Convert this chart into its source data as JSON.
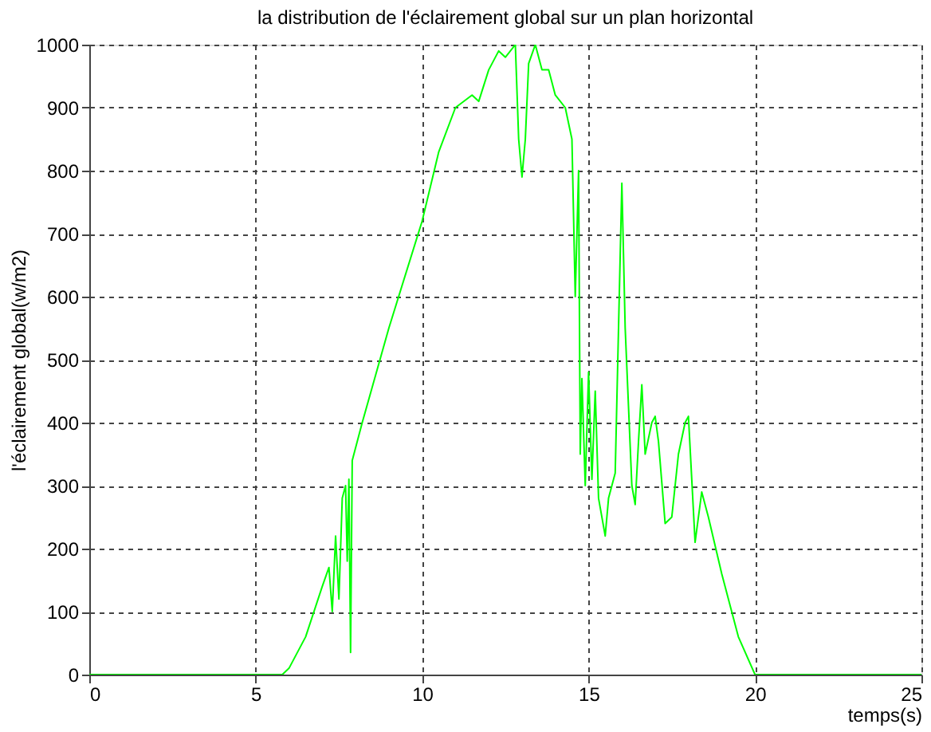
{
  "chart_data": {
    "type": "line",
    "title": "la distribution de l'éclairement global sur un plan horizontal",
    "xlabel": "temps(s)",
    "ylabel": "l'éclairement global(w/m2)",
    "x": [
      0,
      5.8,
      6.0,
      6.5,
      7.0,
      7.2,
      7.3,
      7.4,
      7.5,
      7.6,
      7.7,
      7.75,
      7.8,
      7.85,
      7.9,
      8.2,
      9,
      10,
      10.5,
      11,
      11.5,
      11.7,
      12,
      12.3,
      12.5,
      12.8,
      12.9,
      13.0,
      13.1,
      13.2,
      13.4,
      13.6,
      13.8,
      14.0,
      14.3,
      14.5,
      14.6,
      14.7,
      14.75,
      14.8,
      14.9,
      15.0,
      15.1,
      15.2,
      15.3,
      15.5,
      15.6,
      15.8,
      15.9,
      16.0,
      16.1,
      16.3,
      16.4,
      16.5,
      16.6,
      16.7,
      16.9,
      17.0,
      17.1,
      17.3,
      17.5,
      17.7,
      17.9,
      18.0,
      18.1,
      18.2,
      18.4,
      18.6,
      19,
      19.5,
      20,
      25
    ],
    "series": [
      {
        "color": "#00ff00",
        "values": [
          0,
          0,
          10,
          60,
          140,
          170,
          100,
          220,
          120,
          280,
          300,
          180,
          310,
          35,
          340,
          400,
          550,
          720,
          830,
          900,
          920,
          910,
          960,
          990,
          980,
          1000,
          850,
          790,
          850,
          970,
          1000,
          960,
          960,
          920,
          900,
          850,
          600,
          800,
          350,
          470,
          300,
          480,
          310,
          450,
          280,
          220,
          280,
          320,
          550,
          780,
          550,
          300,
          270,
          370,
          460,
          350,
          400,
          410,
          370,
          240,
          250,
          350,
          400,
          410,
          310,
          210,
          290,
          250,
          160,
          60,
          0,
          0
        ]
      }
    ],
    "xlim": [
      0,
      25
    ],
    "xticks": [
      0,
      5,
      10,
      15,
      20,
      25
    ],
    "ylim": [
      0,
      1000
    ],
    "yticks": [
      0,
      100,
      200,
      300,
      400,
      500,
      600,
      700,
      800,
      900,
      1000
    ],
    "grid": true,
    "line_style": "solid",
    "marker": "none"
  }
}
